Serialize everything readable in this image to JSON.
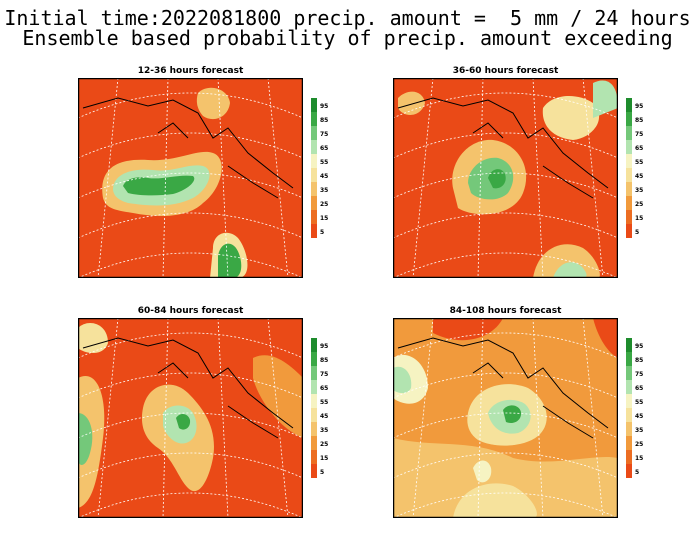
{
  "title_line1": "Initial time:2022081800 precip. amount =  5 mm / 24 hours",
  "title_line2": "Ensemble based probability of precip. amount exceeding",
  "panels": [
    {
      "title": "12-36 hours forecast"
    },
    {
      "title": "36-60 hours forecast"
    },
    {
      "title": "60-84 hours forecast"
    },
    {
      "title": "84-108 hours forecast"
    }
  ],
  "colorbar": {
    "labels": [
      "95",
      "85",
      "75",
      "65",
      "55",
      "45",
      "35",
      "25",
      "15",
      "5"
    ],
    "colors": [
      "#1e8c2d",
      "#3aa845",
      "#74c87a",
      "#b2e4b0",
      "#f6f3c2",
      "#f6e29c",
      "#f4c36c",
      "#f19a3c",
      "#ec6d22",
      "#ea4a17"
    ]
  },
  "colors": {
    "background_ocean": "#ea4a17",
    "land_line": "#000000",
    "grid": "#ffffff"
  }
}
